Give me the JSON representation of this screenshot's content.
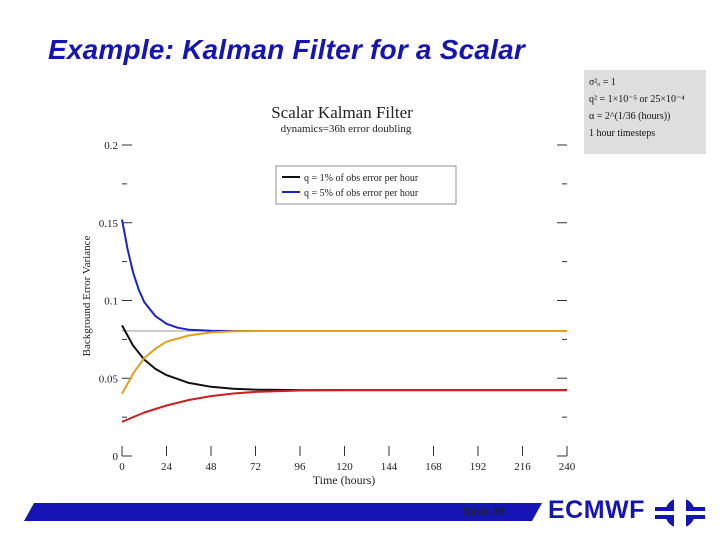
{
  "slide": {
    "title": "Example: Kalman Filter for a Scalar",
    "slide_number": "Slide 38",
    "org_name": "ECMWF",
    "accent_color": "#1515b5"
  },
  "params": {
    "line1": "σ²ₒ = 1",
    "line2": "q² = 1×10⁻⁵  or  25×10⁻⁴",
    "line3": "α = 2^(1/36 (hours))",
    "line4": "1 hour timesteps"
  },
  "chart_data": {
    "type": "line",
    "title": "Scalar Kalman Filter",
    "subtitle": "dynamics=36h error doubling",
    "xlabel": "Time (hours)",
    "ylabel": "Background Error Variance",
    "xlim": [
      0,
      240
    ],
    "ylim": [
      0,
      0.2
    ],
    "x_ticks": [
      "0",
      "24",
      "48",
      "72",
      "96",
      "120",
      "144",
      "168",
      "192",
      "216",
      "240"
    ],
    "y_ticks": [
      "0",
      "0.05",
      "0.1",
      "0.15",
      "0.2"
    ],
    "legend": [
      "q = 1% of obs error per hour",
      "q = 5% of obs error per hour"
    ],
    "legend_position": "top-right",
    "series": [
      {
        "name": "q = 1% of obs error per hour",
        "color": "#111111",
        "x": [
          0,
          6,
          12,
          18,
          24,
          36,
          48,
          60,
          72,
          96,
          120,
          240
        ],
        "y": [
          0.084,
          0.071,
          0.062,
          0.056,
          0.052,
          0.047,
          0.0445,
          0.0432,
          0.0427,
          0.0424,
          0.0424,
          0.0424
        ]
      },
      {
        "name": "q = 5% of obs error per hour",
        "color": "#1a24c4",
        "x": [
          0,
          3,
          6,
          9,
          12,
          18,
          24,
          30,
          36,
          48,
          60,
          72,
          240
        ],
        "y": [
          0.152,
          0.133,
          0.118,
          0.107,
          0.099,
          0.09,
          0.085,
          0.0825,
          0.0812,
          0.0805,
          0.0804,
          0.0804,
          0.0804
        ]
      },
      {
        "color": "#e0a020",
        "x": [
          0,
          6,
          12,
          18,
          24,
          36,
          48,
          60,
          72,
          240
        ],
        "y": [
          0.04,
          0.053,
          0.063,
          0.069,
          0.0735,
          0.0775,
          0.0795,
          0.0802,
          0.0804,
          0.0804
        ]
      },
      {
        "color": "#cc2020",
        "x": [
          0,
          12,
          24,
          36,
          48,
          60,
          72,
          96,
          120,
          240
        ],
        "y": [
          0.022,
          0.028,
          0.0325,
          0.036,
          0.0385,
          0.0402,
          0.0412,
          0.0421,
          0.0424,
          0.0424
        ]
      },
      {
        "color": "#999999",
        "x": [
          0,
          240
        ],
        "y": [
          0.0804,
          0.0804
        ]
      }
    ]
  }
}
